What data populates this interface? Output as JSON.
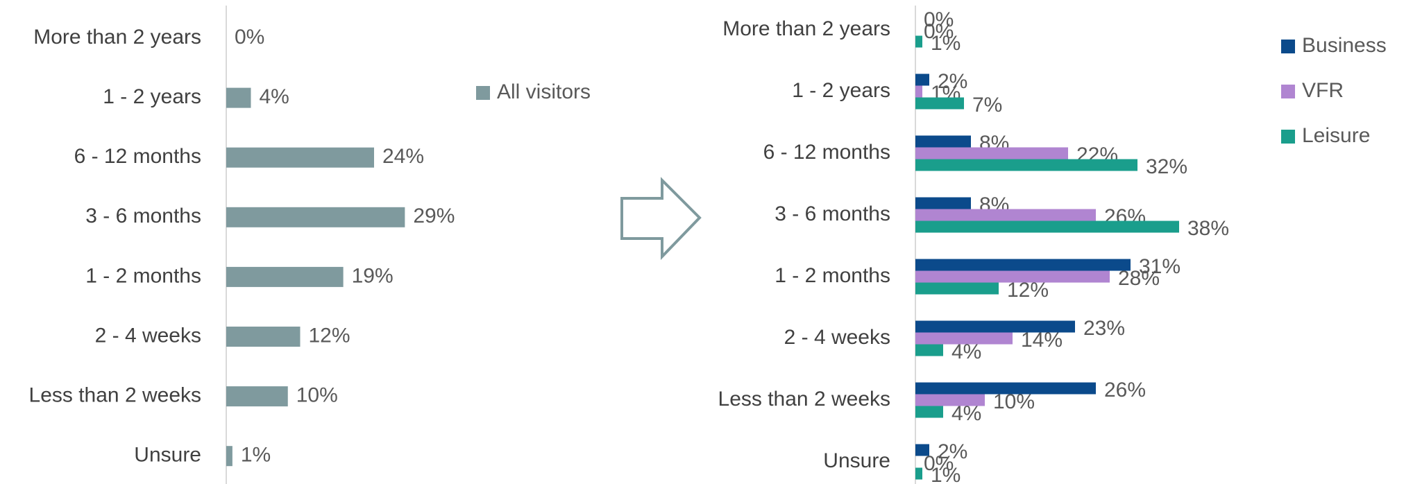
{
  "chart_data": [
    {
      "type": "bar",
      "orientation": "horizontal",
      "categories": [
        "More than 2 years",
        "1 - 2 years",
        "6 - 12 months",
        "3 - 6 months",
        "1 - 2 months",
        "2 - 4 weeks",
        "Less than 2 weeks",
        "Unsure"
      ],
      "series": [
        {
          "name": "All visitors",
          "color": "#7f9a9e",
          "values": [
            0,
            4,
            24,
            29,
            19,
            12,
            10,
            1
          ],
          "value_labels": [
            "0%",
            "4%",
            "24%",
            "29%",
            "19%",
            "12%",
            "10%",
            "1%"
          ]
        }
      ],
      "xlim": [
        0,
        40
      ],
      "legend": "right"
    },
    {
      "type": "bar",
      "orientation": "horizontal",
      "categories": [
        "More than 2 years",
        "1 - 2 years",
        "6 - 12 months",
        "3 - 6 months",
        "1 - 2 months",
        "2 - 4 weeks",
        "Less than 2 weeks",
        "Unsure"
      ],
      "series": [
        {
          "name": "Business",
          "color": "#0b4a8b",
          "values": [
            0,
            2,
            8,
            8,
            31,
            23,
            26,
            2
          ],
          "value_labels": [
            "0%",
            "2%",
            "8%",
            "8%",
            "31%",
            "23%",
            "26%",
            "2%"
          ]
        },
        {
          "name": "VFR",
          "color": "#b085d1",
          "values": [
            0,
            1,
            22,
            26,
            28,
            14,
            10,
            0
          ],
          "value_labels": [
            "0%",
            "1%",
            "22%",
            "26%",
            "28%",
            "14%",
            "10%",
            "0%"
          ]
        },
        {
          "name": "Leisure",
          "color": "#1a9e8c",
          "values": [
            1,
            7,
            32,
            38,
            12,
            4,
            4,
            1
          ],
          "value_labels": [
            "1%",
            "7%",
            "32%",
            "38%",
            "12%",
            "4%",
            "4%",
            "1%"
          ]
        }
      ],
      "xlim": [
        0,
        40
      ],
      "legend": "right"
    }
  ]
}
